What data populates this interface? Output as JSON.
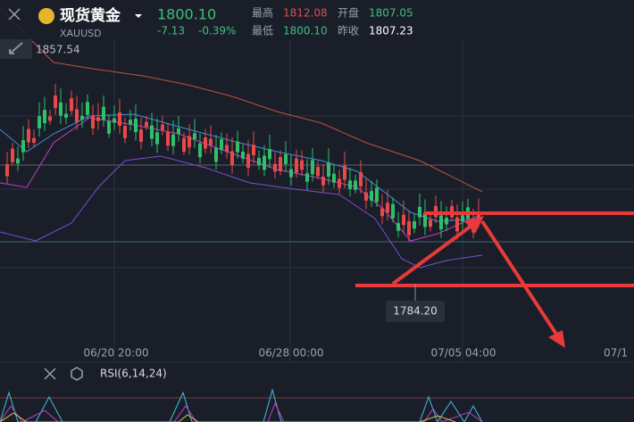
{
  "header": {
    "name": "现货黄金",
    "price": "1800.10",
    "symbol": "XAUUSD",
    "change": "-7.13",
    "change_pct": "-0.39%",
    "stats": [
      {
        "label": "最高",
        "value": "1812.08"
      },
      {
        "label": "开盘",
        "value": "1807.05"
      },
      {
        "label": "最低",
        "value": "1800.10"
      },
      {
        "label": "昨收",
        "value": "1807.23"
      }
    ]
  },
  "chart": {
    "high_marker": "1857.54",
    "low_marker": "1784.20",
    "time_labels": [
      "06/20 20:00",
      "06/28 00:00",
      "07/05 04:00",
      "07/1"
    ]
  },
  "indicator": {
    "label": "RSI(6,14,24)"
  }
}
